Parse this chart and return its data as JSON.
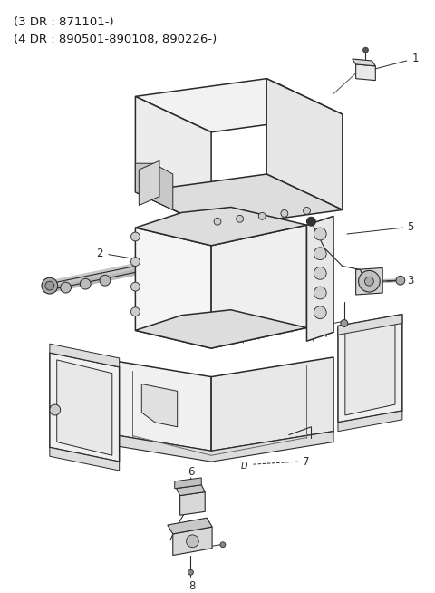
{
  "bg_color": "#ffffff",
  "line_color": "#2a2a2a",
  "text_color": "#1a1a1a",
  "title_lines": [
    "(3 DR : 871101-)",
    "(4 DR : 890501-890108, 890226-)"
  ],
  "figsize": [
    4.8,
    6.54
  ],
  "dpi": 100,
  "label_fontsize": 8.5,
  "title_fontsize": 9.5
}
